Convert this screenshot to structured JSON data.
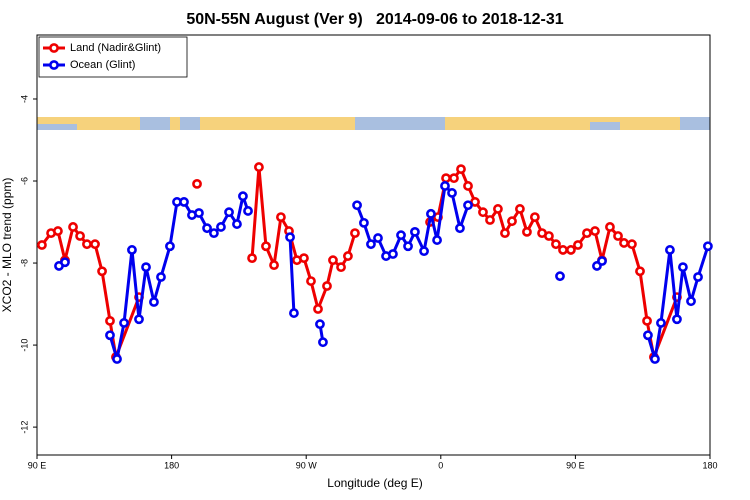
{
  "chart_data": {
    "type": "line",
    "title": "50N-55N August (Ver 9)   2014-09-06 to 2018-12-31",
    "xlabel": "Longitude (deg E)",
    "ylabel": "XCO2 - MLO trend (ppm)",
    "xlim": [
      90,
      540
    ],
    "ylim": [
      -12.68,
      -2.44
    ],
    "xticks": [
      {
        "value": 90,
        "label": "90 E"
      },
      180,
      {
        "value": 270,
        "label": "90 W"
      },
      {
        "value": 360,
        "label": "0"
      },
      {
        "value": 450,
        "label": "90 E"
      },
      {
        "value": 540,
        "label": "180"
      }
    ],
    "yticks": [
      -4,
      -6,
      -8,
      -10,
      -12
    ],
    "legend": "upper left",
    "series": [
      {
        "name": "Land (Nadir&Glint)",
        "color": "#ee0000",
        "x": [
          93.3,
          99.4,
          104.0,
          108.7,
          114.1,
          118.8,
          123.4,
          128.8,
          133.5,
          138.8,
          142.8,
          158.2,
          null,
          197.0,
          null,
          233.8,
          238.4,
          243.1,
          248.5,
          253.1,
          258.5,
          263.8,
          268.5,
          273.2,
          277.9,
          283.9,
          287.9,
          293.3,
          297.9,
          302.6,
          null,
          352.8,
          358.1,
          363.5,
          368.8,
          373.5,
          378.2,
          382.9,
          388.2,
          392.9,
          398.2,
          402.9,
          407.6,
          412.9,
          417.6,
          422.9,
          427.7,
          432.3,
          437.0,
          441.7,
          447.0,
          451.7,
          457.7,
          463.1,
          467.8,
          473.1,
          478.5,
          482.5,
          487.8,
          493.2,
          497.9,
          502.5,
          517.9
        ],
        "values": [
          -7.56,
          -7.27,
          -7.22,
          -7.93,
          -7.12,
          -7.34,
          -7.54,
          -7.54,
          -8.2,
          -9.41,
          -10.29,
          -8.83,
          null,
          -6.07,
          null,
          -7.88,
          -5.66,
          -7.59,
          -8.05,
          -6.88,
          -7.22,
          -7.93,
          -7.88,
          -8.44,
          -9.12,
          -8.56,
          -7.93,
          -8.1,
          -7.83,
          -7.27,
          null,
          -7.0,
          -6.88,
          -5.93,
          -5.93,
          -5.71,
          -6.12,
          -6.51,
          -6.76,
          -6.95,
          -6.68,
          -7.27,
          -6.98,
          -6.68,
          -7.24,
          -6.88,
          -7.27,
          -7.34,
          -7.54,
          -7.68,
          -7.68,
          -7.56,
          -7.27,
          -7.22,
          -7.93,
          -7.12,
          -7.34,
          -7.51,
          -7.54,
          -8.2,
          -9.41,
          -10.29,
          -8.83
        ]
      },
      {
        "name": "Ocean (Glint)",
        "color": "#0000ee",
        "x": [
          104.7,
          108.7,
          null,
          138.8,
          143.5,
          148.2,
          153.5,
          158.2,
          162.9,
          168.2,
          172.9,
          178.9,
          183.6,
          188.3,
          193.6,
          198.3,
          203.7,
          208.3,
          213.0,
          218.4,
          223.7,
          227.7,
          231.1,
          null,
          259.2,
          261.8,
          null,
          279.2,
          281.2,
          null,
          304.0,
          308.6,
          313.3,
          318.0,
          323.4,
          328.0,
          333.4,
          338.1,
          342.7,
          348.8,
          353.4,
          357.5,
          362.8,
          367.5,
          372.8,
          378.2,
          null,
          439.7,
          null,
          464.4,
          467.8,
          null,
          498.5,
          503.2,
          507.2,
          513.2,
          517.9,
          521.9,
          527.3,
          532.0,
          538.6
        ],
        "values": [
          -8.07,
          -7.98,
          null,
          -9.76,
          -10.34,
          -9.46,
          -7.68,
          -9.37,
          -8.1,
          -8.95,
          -8.34,
          -7.59,
          -6.51,
          -6.51,
          -6.83,
          -6.78,
          -7.15,
          -7.27,
          -7.12,
          -6.76,
          -7.05,
          -6.37,
          -6.73,
          null,
          -7.37,
          -9.22,
          null,
          -9.49,
          -9.93,
          null,
          -6.59,
          -7.02,
          -7.54,
          -7.39,
          -7.83,
          -7.78,
          -7.32,
          -7.59,
          -7.24,
          -7.71,
          -6.8,
          -7.44,
          -6.12,
          -6.29,
          -7.15,
          -6.59,
          null,
          -8.32,
          null,
          -8.07,
          -7.95,
          null,
          -9.76,
          -10.34,
          -9.46,
          -7.68,
          -9.37,
          -8.1,
          -8.93,
          -8.34,
          -7.59
        ]
      }
    ]
  }
}
